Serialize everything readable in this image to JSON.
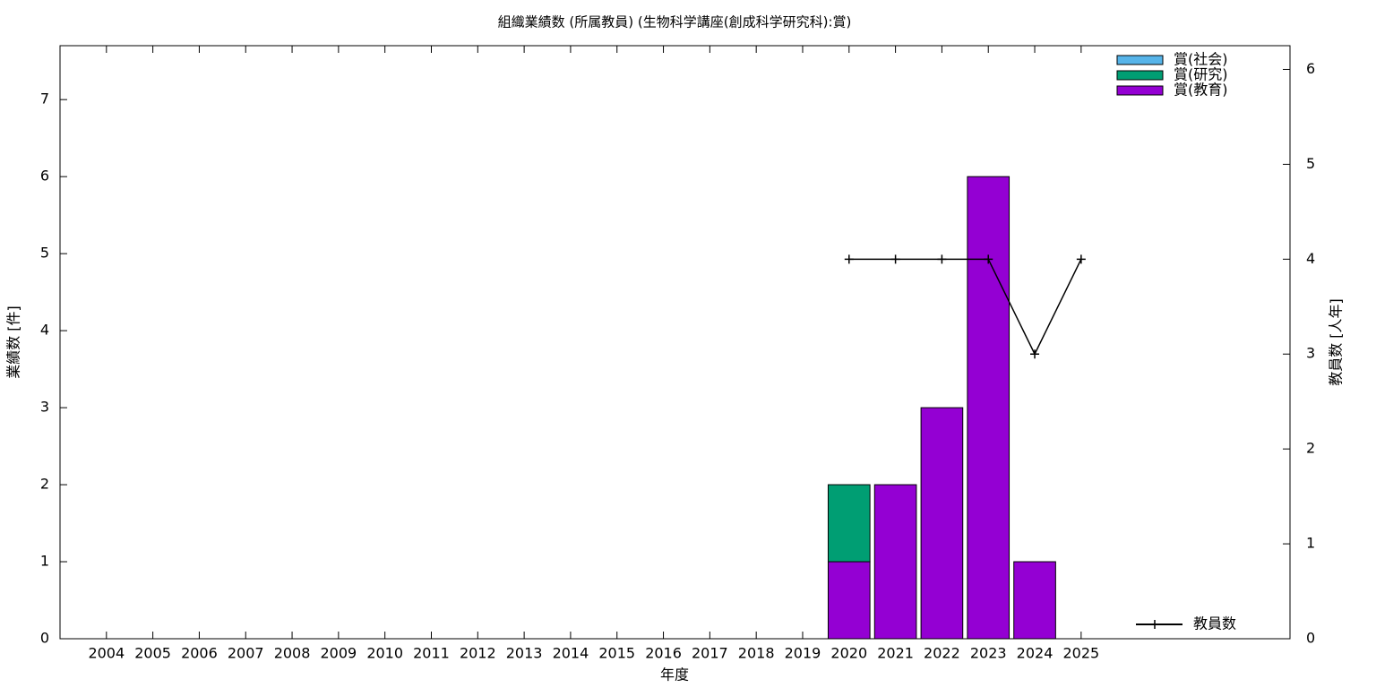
{
  "chart_data": {
    "type": "bar",
    "title": "組織業績数 (所属教員) (生物科学講座(創成科学研究科):賞)",
    "x_label": "年度",
    "y_label": "業績数 [件]",
    "y2_label": "教員数 [人年]",
    "categories": [
      "2004",
      "2005",
      "2006",
      "2007",
      "2008",
      "2009",
      "2010",
      "2011",
      "2012",
      "2013",
      "2014",
      "2015",
      "2016",
      "2017",
      "2018",
      "2019",
      "2020",
      "2021",
      "2022",
      "2023",
      "2024",
      "2025"
    ],
    "series": [
      {
        "name": "賞(教育)",
        "color": "#9400d3",
        "values": [
          0,
          0,
          0,
          0,
          0,
          0,
          0,
          0,
          0,
          0,
          0,
          0,
          0,
          0,
          0,
          0,
          1,
          2,
          3,
          6,
          1,
          0
        ]
      },
      {
        "name": "賞(研究)",
        "color": "#009e73",
        "values": [
          0,
          0,
          0,
          0,
          0,
          0,
          0,
          0,
          0,
          0,
          0,
          0,
          0,
          0,
          0,
          0,
          1,
          0,
          0,
          0,
          0,
          0
        ]
      },
      {
        "name": "賞(社会)",
        "color": "#56b4e9",
        "values": [
          0,
          0,
          0,
          0,
          0,
          0,
          0,
          0,
          0,
          0,
          0,
          0,
          0,
          0,
          0,
          0,
          0,
          0,
          0,
          0,
          0,
          0
        ]
      },
      {
        "name": "教員数",
        "color": "#000000",
        "type": "line",
        "axis": "y2",
        "values": [
          null,
          null,
          null,
          null,
          null,
          null,
          null,
          null,
          null,
          null,
          null,
          null,
          null,
          null,
          null,
          null,
          4,
          4,
          4,
          4,
          3,
          4
        ]
      }
    ],
    "stacked": true,
    "ylim": [
      0,
      7.7
    ],
    "yticks": [
      0,
      1,
      2,
      3,
      4,
      5,
      6,
      7
    ],
    "y2lim": [
      0,
      6.25
    ],
    "y2ticks": [
      0,
      1,
      2,
      3,
      4,
      5,
      6
    ],
    "legend": "upper right"
  }
}
